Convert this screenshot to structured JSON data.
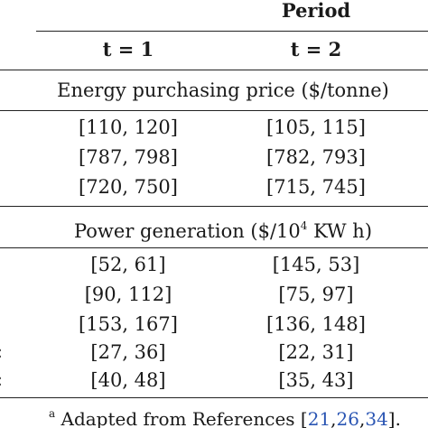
{
  "header": {
    "period_label": "Period",
    "col_t1": "t = 1",
    "col_t2": "t = 2"
  },
  "sections": [
    {
      "title": "Energy purchasing price ($/tonne)",
      "rows": [
        {
          "t1": "[110, 120]",
          "t2": "[105, 115]"
        },
        {
          "t1": "[787, 798]",
          "t2": "[782, 793]"
        },
        {
          "t1": "[720, 750]",
          "t2": "[715, 745]"
        }
      ]
    },
    {
      "title_prefix": "Power generation ($/10",
      "title_sup": "4",
      "title_suffix": " KW h)",
      "rows": [
        {
          "t1": "[52, 61]",
          "t2": "[145, 53]"
        },
        {
          "t1": "[90, 112]",
          "t2": "[75, 97]"
        },
        {
          "t1": "[153, 167]",
          "t2": "[136, 148]"
        },
        {
          "t1": "[27, 36]",
          "t2": "[22, 31]"
        },
        {
          "t1": "[40, 48]",
          "t2": "[35, 43]"
        }
      ]
    }
  ],
  "cut_off_fragments": [
    ":",
    ":"
  ],
  "footnote": {
    "marker": "a",
    "text": " Adapted from References [",
    "refs": [
      "21",
      "26",
      "34"
    ],
    "close": "]."
  }
}
